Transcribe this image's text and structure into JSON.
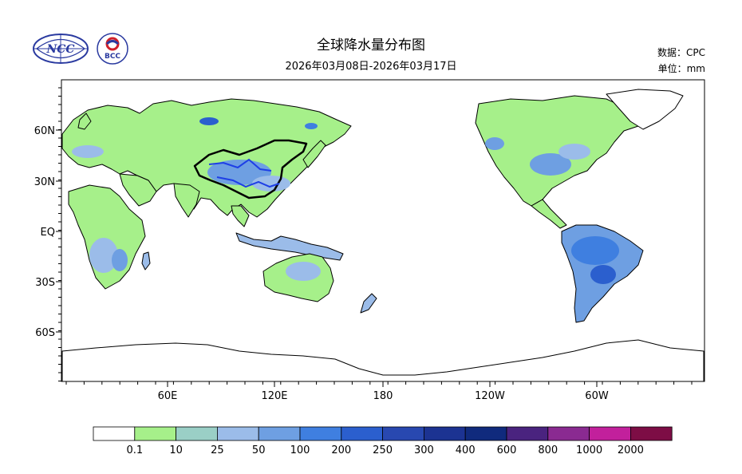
{
  "header": {
    "title": "全球降水量分布图",
    "subtitle": "2026年03月08日-2026年03月17日",
    "source": "数据：CPC",
    "unit": "单位：mm"
  },
  "logos": {
    "ncc_text": "NCC",
    "bcc_text": "BCC"
  },
  "axes": {
    "x_ticks": [
      "60E",
      "120E",
      "180",
      "120W",
      "60W"
    ],
    "y_ticks": [
      "60N",
      "30N",
      "EQ",
      "30S",
      "60S"
    ]
  },
  "colorbar": {
    "labels": [
      "0.1",
      "10",
      "25",
      "50",
      "100",
      "200",
      "250",
      "300",
      "400",
      "600",
      "800",
      "1000",
      "2000"
    ],
    "colors": [
      "#ffffff",
      "#a6f08a",
      "#9acfc6",
      "#9bbce9",
      "#6e9fe2",
      "#3f7fe0",
      "#2b5fce",
      "#2848b0",
      "#1c3392",
      "#102a7d",
      "#4a237f",
      "#8a2a91",
      "#c2209c",
      "#7d0d45"
    ]
  }
}
